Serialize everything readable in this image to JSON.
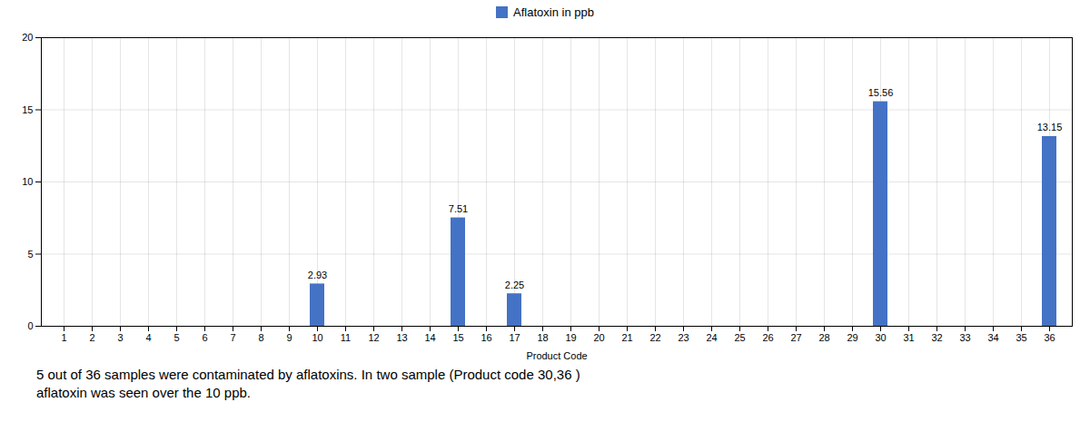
{
  "chart_data": {
    "type": "bar",
    "categories": [
      1,
      2,
      3,
      4,
      5,
      6,
      7,
      8,
      9,
      10,
      11,
      12,
      13,
      14,
      15,
      16,
      17,
      18,
      19,
      20,
      21,
      22,
      23,
      24,
      25,
      26,
      27,
      28,
      29,
      30,
      31,
      32,
      33,
      34,
      35,
      36
    ],
    "series": [
      {
        "name": "Aflatoxin in ppb",
        "color": "#4472C4",
        "values": [
          0,
          0,
          0,
          0,
          0,
          0,
          0,
          0,
          0,
          2.93,
          0,
          0,
          0,
          0,
          7.51,
          0,
          2.25,
          0,
          0,
          0,
          0,
          0,
          0,
          0,
          0,
          0,
          0,
          0,
          0,
          15.56,
          0,
          0,
          0,
          0,
          0,
          13.15
        ]
      }
    ],
    "xlabel": "Product Code",
    "ylim": [
      0,
      20
    ],
    "yticks": [
      0,
      5,
      10,
      15,
      20
    ],
    "grid": true,
    "legend": "top",
    "data_labels": true,
    "annotations": [
      "5 out of 36 samples were contaminated by aflatoxins. In two sample (Product code 30,36 )",
      "aflatoxin was seen over the 10 ppb."
    ]
  }
}
